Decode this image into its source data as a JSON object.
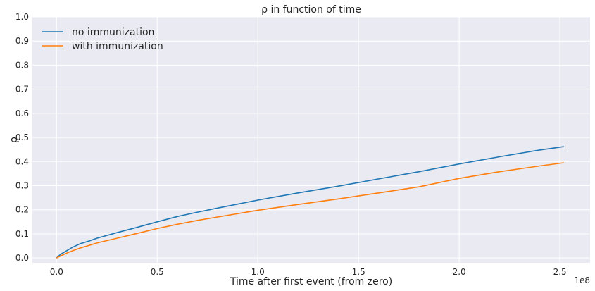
{
  "chart_data": {
    "type": "line",
    "title": "ρ in function of time",
    "xlabel": "Time after first event (from zero)",
    "ylabel": "ρ",
    "x_offset_label": "1e8",
    "xlim": [
      -12000000.0,
      265000000.0
    ],
    "ylim": [
      -0.02,
      1.0
    ],
    "xticks": [
      0,
      50000000.0,
      100000000.0,
      150000000.0,
      200000000.0,
      250000000.0
    ],
    "xtick_labels": [
      "0.0",
      "0.5",
      "1.0",
      "1.5",
      "2.0",
      "2.5"
    ],
    "yticks": [
      0.0,
      0.1,
      0.2,
      0.3,
      0.4,
      0.5,
      0.6,
      0.7,
      0.8,
      0.9,
      1.0
    ],
    "ytick_labels": [
      "0.0",
      "0.1",
      "0.2",
      "0.3",
      "0.4",
      "0.5",
      "0.6",
      "0.7",
      "0.8",
      "0.9",
      "1.0"
    ],
    "grid": true,
    "legend_position": "top-left",
    "series": [
      {
        "name": "no immunization",
        "color": "#1f77b4",
        "x": [
          0,
          2000000.0,
          5000000.0,
          8000000.0,
          12000000.0,
          16000000.0,
          20000000.0,
          30000000.0,
          40000000.0,
          50000000.0,
          60000000.0,
          70000000.0,
          80000000.0,
          100000000.0,
          120000000.0,
          140000000.0,
          160000000.0,
          180000000.0,
          200000000.0,
          220000000.0,
          240000000.0,
          252000000.0
        ],
        "y": [
          0.0,
          0.015,
          0.03,
          0.045,
          0.06,
          0.07,
          0.082,
          0.105,
          0.127,
          0.15,
          0.172,
          0.19,
          0.207,
          0.24,
          0.27,
          0.298,
          0.328,
          0.358,
          0.39,
          0.42,
          0.448,
          0.462
        ]
      },
      {
        "name": "with immunization",
        "color": "#ff7f0e",
        "x": [
          0,
          2000000.0,
          5000000.0,
          8000000.0,
          12000000.0,
          16000000.0,
          20000000.0,
          30000000.0,
          40000000.0,
          50000000.0,
          60000000.0,
          70000000.0,
          80000000.0,
          100000000.0,
          120000000.0,
          140000000.0,
          160000000.0,
          180000000.0,
          200000000.0,
          220000000.0,
          240000000.0,
          252000000.0
        ],
        "y": [
          0.0,
          0.008,
          0.02,
          0.03,
          0.042,
          0.052,
          0.062,
          0.082,
          0.102,
          0.122,
          0.14,
          0.156,
          0.17,
          0.198,
          0.222,
          0.245,
          0.27,
          0.295,
          0.33,
          0.358,
          0.382,
          0.395
        ]
      }
    ]
  }
}
